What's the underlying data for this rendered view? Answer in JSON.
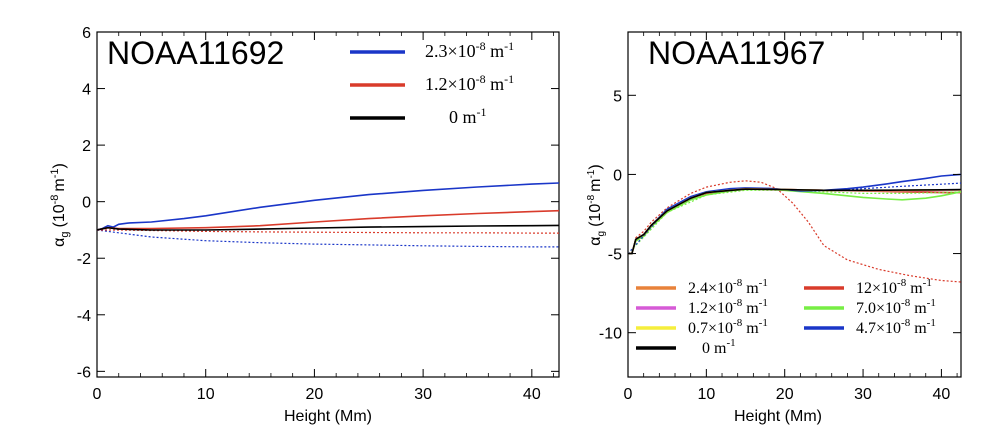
{
  "chart_data": [
    {
      "type": "line",
      "title": "NOAA11692",
      "xlabel": "Height (Mm)",
      "ylabel_main": "α",
      "ylabel_sub": "g",
      "ylabel_unit": "(10",
      "ylabel_unit_exp": "-8",
      "ylabel_unit_tail": "m",
      "ylabel_unit_tail_exp": "-1",
      "ylabel_close": ")",
      "xlim": [
        0,
        42.5
      ],
      "ylim": [
        -6.2,
        6.0
      ],
      "xticks": [
        0,
        10,
        20,
        30,
        40
      ],
      "xtick_labels": [
        "0",
        "10",
        "20",
        "30",
        "40"
      ],
      "yticks": [
        -6,
        -4,
        -2,
        0,
        2,
        4,
        6
      ],
      "ytick_labels": [
        "-6",
        "-4",
        "-2",
        "0",
        "2",
        "4",
        "6"
      ],
      "legend": [
        {
          "mantissa": "2.3×10",
          "exp": "-8",
          "unit": " m",
          "unit_exp": "-1",
          "color": "#1a36c8"
        },
        {
          "mantissa": "1.2×10",
          "exp": "-8",
          "unit": " m",
          "unit_exp": "-1",
          "color": "#d93b2b"
        },
        {
          "mantissa": "0 m",
          "exp": "-1",
          "unit": "",
          "unit_exp": "",
          "color": "#000000"
        }
      ],
      "series": [
        {
          "name": "2.3e-8 solid",
          "color": "#1a36c8",
          "dash": false,
          "x": [
            0,
            0.5,
            1,
            1.5,
            2,
            3,
            5,
            8,
            10,
            15,
            20,
            25,
            30,
            35,
            40,
            42.5
          ],
          "y": [
            -1.0,
            -0.95,
            -0.85,
            -0.9,
            -0.8,
            -0.75,
            -0.72,
            -0.6,
            -0.5,
            -0.2,
            0.05,
            0.25,
            0.4,
            0.52,
            0.62,
            0.66
          ]
        },
        {
          "name": "2.3e-8 dotted",
          "color": "#1a36c8",
          "dash": true,
          "x": [
            0,
            2,
            5,
            10,
            15,
            20,
            25,
            30,
            35,
            40,
            42.5
          ],
          "y": [
            -1.0,
            -1.1,
            -1.25,
            -1.38,
            -1.45,
            -1.5,
            -1.53,
            -1.56,
            -1.58,
            -1.6,
            -1.6
          ]
        },
        {
          "name": "1.2e-8 solid",
          "color": "#d93b2b",
          "dash": false,
          "x": [
            0,
            1,
            2,
            5,
            10,
            15,
            20,
            25,
            30,
            35,
            40,
            42.5
          ],
          "y": [
            -1.0,
            -0.92,
            -0.95,
            -0.95,
            -0.92,
            -0.85,
            -0.72,
            -0.6,
            -0.5,
            -0.42,
            -0.35,
            -0.32
          ]
        },
        {
          "name": "1.2e-8 dotted",
          "color": "#d93b2b",
          "dash": true,
          "x": [
            0,
            2,
            5,
            10,
            15,
            20,
            25,
            30,
            35,
            40,
            42.5
          ],
          "y": [
            -1.0,
            -1.0,
            -1.02,
            -1.05,
            -1.07,
            -1.08,
            -1.09,
            -1.1,
            -1.1,
            -1.11,
            -1.11
          ]
        },
        {
          "name": "0 solid",
          "color": "#000000",
          "dash": false,
          "x": [
            0,
            1,
            2,
            5,
            10,
            15,
            20,
            25,
            30,
            35,
            40,
            42.5
          ],
          "y": [
            -1.0,
            -0.92,
            -0.97,
            -1.0,
            -1.0,
            -0.97,
            -0.93,
            -0.9,
            -0.88,
            -0.86,
            -0.85,
            -0.84
          ]
        }
      ]
    },
    {
      "type": "line",
      "title": "NOAA11967",
      "xlabel": "Height (Mm)",
      "ylabel_main": "α",
      "ylabel_sub": "g",
      "ylabel_unit": "(10",
      "ylabel_unit_exp": "-8",
      "ylabel_unit_tail": "m",
      "ylabel_unit_tail_exp": "-1",
      "ylabel_close": ")",
      "xlim": [
        0,
        42.5
      ],
      "ylim": [
        -12.8,
        9.0
      ],
      "xticks": [
        0,
        10,
        20,
        30,
        40
      ],
      "xtick_labels": [
        "0",
        "10",
        "20",
        "30",
        "40"
      ],
      "yticks": [
        -10,
        -5,
        0,
        5
      ],
      "ytick_labels": [
        "-10",
        "-5",
        "0",
        "5"
      ],
      "legend": [
        {
          "mantissa": "2.4×10",
          "exp": "-8",
          "unit": " m",
          "unit_exp": "-1",
          "color": "#e8823a"
        },
        {
          "mantissa": "1.2×10",
          "exp": "-8",
          "unit": " m",
          "unit_exp": "-1",
          "color": "#d65ad6"
        },
        {
          "mantissa": "0.7×10",
          "exp": "-8",
          "unit": " m",
          "unit_exp": "-1",
          "color": "#f5ee3c"
        },
        {
          "mantissa": "0 m",
          "exp": "-1",
          "unit": "",
          "unit_exp": "",
          "color": "#000000"
        },
        {
          "mantissa": "12×10",
          "exp": "-8",
          "unit": " m",
          "unit_exp": "-1",
          "color": "#d93b2b"
        },
        {
          "mantissa": "7.0×10",
          "exp": "-8",
          "unit": " m",
          "unit_exp": "-1",
          "color": "#77ee44"
        },
        {
          "mantissa": "4.7×10",
          "exp": "-8",
          "unit": " m",
          "unit_exp": "-1",
          "color": "#1a36c8"
        }
      ],
      "series": [
        {
          "name": "12e-8 dotted",
          "color": "#d93b2b",
          "dash": true,
          "x": [
            0,
            0.5,
            1,
            2,
            3,
            5,
            8,
            10,
            13,
            15,
            17,
            19,
            21,
            23,
            25,
            28,
            32,
            36,
            40,
            42.5
          ],
          "y": [
            -5.0,
            -5.0,
            -4.0,
            -3.6,
            -3.0,
            -2.1,
            -1.2,
            -0.8,
            -0.5,
            -0.4,
            -0.5,
            -0.9,
            -1.8,
            -3.0,
            -4.5,
            -5.4,
            -6.0,
            -6.4,
            -6.7,
            -6.8
          ]
        },
        {
          "name": "12e-8 solid",
          "color": "#d93b2b",
          "dash": false,
          "x": [
            0,
            0.5,
            1,
            2,
            3,
            5,
            8,
            10,
            13,
            15,
            18,
            20,
            25,
            30,
            35,
            40,
            42.5
          ],
          "y": [
            -5.0,
            -5.0,
            -4.1,
            -3.8,
            -3.2,
            -2.3,
            -1.5,
            -1.2,
            -1.0,
            -0.9,
            -0.9,
            -0.95,
            -1.0,
            -1.05,
            -1.1,
            -1.15,
            -1.15
          ]
        },
        {
          "name": "7.0e-8 solid",
          "color": "#77ee44",
          "dash": false,
          "x": [
            0,
            0.5,
            1,
            2,
            3,
            5,
            8,
            10,
            13,
            15,
            18,
            20,
            25,
            30,
            33,
            35,
            38,
            40,
            42.5
          ],
          "y": [
            -5.0,
            -5.0,
            -4.2,
            -3.9,
            -3.3,
            -2.4,
            -1.6,
            -1.3,
            -1.05,
            -0.95,
            -0.95,
            -1.0,
            -1.2,
            -1.45,
            -1.55,
            -1.6,
            -1.5,
            -1.35,
            -1.1
          ]
        },
        {
          "name": "7.0e-8 dotted",
          "color": "#77ee44",
          "dash": true,
          "x": [
            0,
            5,
            10,
            15,
            20,
            25,
            30,
            35,
            40,
            42.5
          ],
          "y": [
            -5.0,
            -2.4,
            -1.3,
            -1.0,
            -1.0,
            -1.1,
            -1.2,
            -1.2,
            -1.15,
            -1.1
          ]
        },
        {
          "name": "4.7e-8 solid",
          "color": "#1a36c8",
          "dash": false,
          "x": [
            0,
            0.5,
            1,
            2,
            3,
            5,
            8,
            10,
            13,
            15,
            18,
            20,
            22,
            25,
            28,
            30,
            33,
            35,
            38,
            40,
            42.5
          ],
          "y": [
            -5.0,
            -5.0,
            -4.1,
            -3.8,
            -3.2,
            -2.2,
            -1.4,
            -1.1,
            -0.9,
            -0.85,
            -0.88,
            -0.95,
            -1.05,
            -1.0,
            -0.9,
            -0.8,
            -0.6,
            -0.45,
            -0.25,
            -0.1,
            0.0
          ]
        },
        {
          "name": "4.7e-8 dotted",
          "color": "#1a36c8",
          "dash": true,
          "x": [
            0,
            5,
            10,
            15,
            20,
            25,
            30,
            35,
            40,
            42.5
          ],
          "y": [
            -5.0,
            -2.2,
            -1.1,
            -0.88,
            -0.95,
            -1.0,
            -0.9,
            -0.75,
            -0.62,
            -0.55
          ]
        },
        {
          "name": "2.4e-8 solid",
          "color": "#e8823a",
          "dash": false,
          "x": [
            0,
            0.5,
            1,
            2,
            3,
            5,
            8,
            10,
            15,
            20,
            25,
            30,
            35,
            40,
            42.5
          ],
          "y": [
            -5.0,
            -5.0,
            -4.1,
            -3.8,
            -3.2,
            -2.3,
            -1.5,
            -1.15,
            -0.9,
            -0.95,
            -1.0,
            -1.05,
            -1.05,
            -1.0,
            -0.98
          ]
        },
        {
          "name": "1.2e-8 solid",
          "color": "#d65ad6",
          "dash": false,
          "x": [
            0,
            0.5,
            1,
            2,
            3,
            5,
            8,
            10,
            15,
            20,
            25,
            30,
            35,
            40,
            42.5
          ],
          "y": [
            -5.0,
            -5.0,
            -4.1,
            -3.8,
            -3.2,
            -2.3,
            -1.5,
            -1.15,
            -0.92,
            -0.96,
            -1.0,
            -1.02,
            -1.02,
            -1.0,
            -0.98
          ]
        },
        {
          "name": "0.7e-8 solid",
          "color": "#f5ee3c",
          "dash": false,
          "x": [
            0,
            0.5,
            1,
            2,
            3,
            5,
            8,
            10,
            15,
            20,
            25,
            30,
            35,
            40,
            42.5
          ],
          "y": [
            -5.0,
            -5.0,
            -4.1,
            -3.8,
            -3.2,
            -2.3,
            -1.5,
            -1.15,
            -0.93,
            -0.96,
            -1.0,
            -1.0,
            -1.0,
            -0.98,
            -0.97
          ]
        },
        {
          "name": "0 solid",
          "color": "#000000",
          "dash": false,
          "x": [
            0,
            0.5,
            1,
            2,
            3,
            5,
            8,
            10,
            15,
            20,
            25,
            30,
            35,
            40,
            42.5
          ],
          "y": [
            -5.0,
            -5.0,
            -4.1,
            -3.8,
            -3.2,
            -2.3,
            -1.5,
            -1.15,
            -0.93,
            -0.96,
            -1.0,
            -1.0,
            -0.99,
            -0.97,
            -0.96
          ]
        }
      ]
    }
  ]
}
